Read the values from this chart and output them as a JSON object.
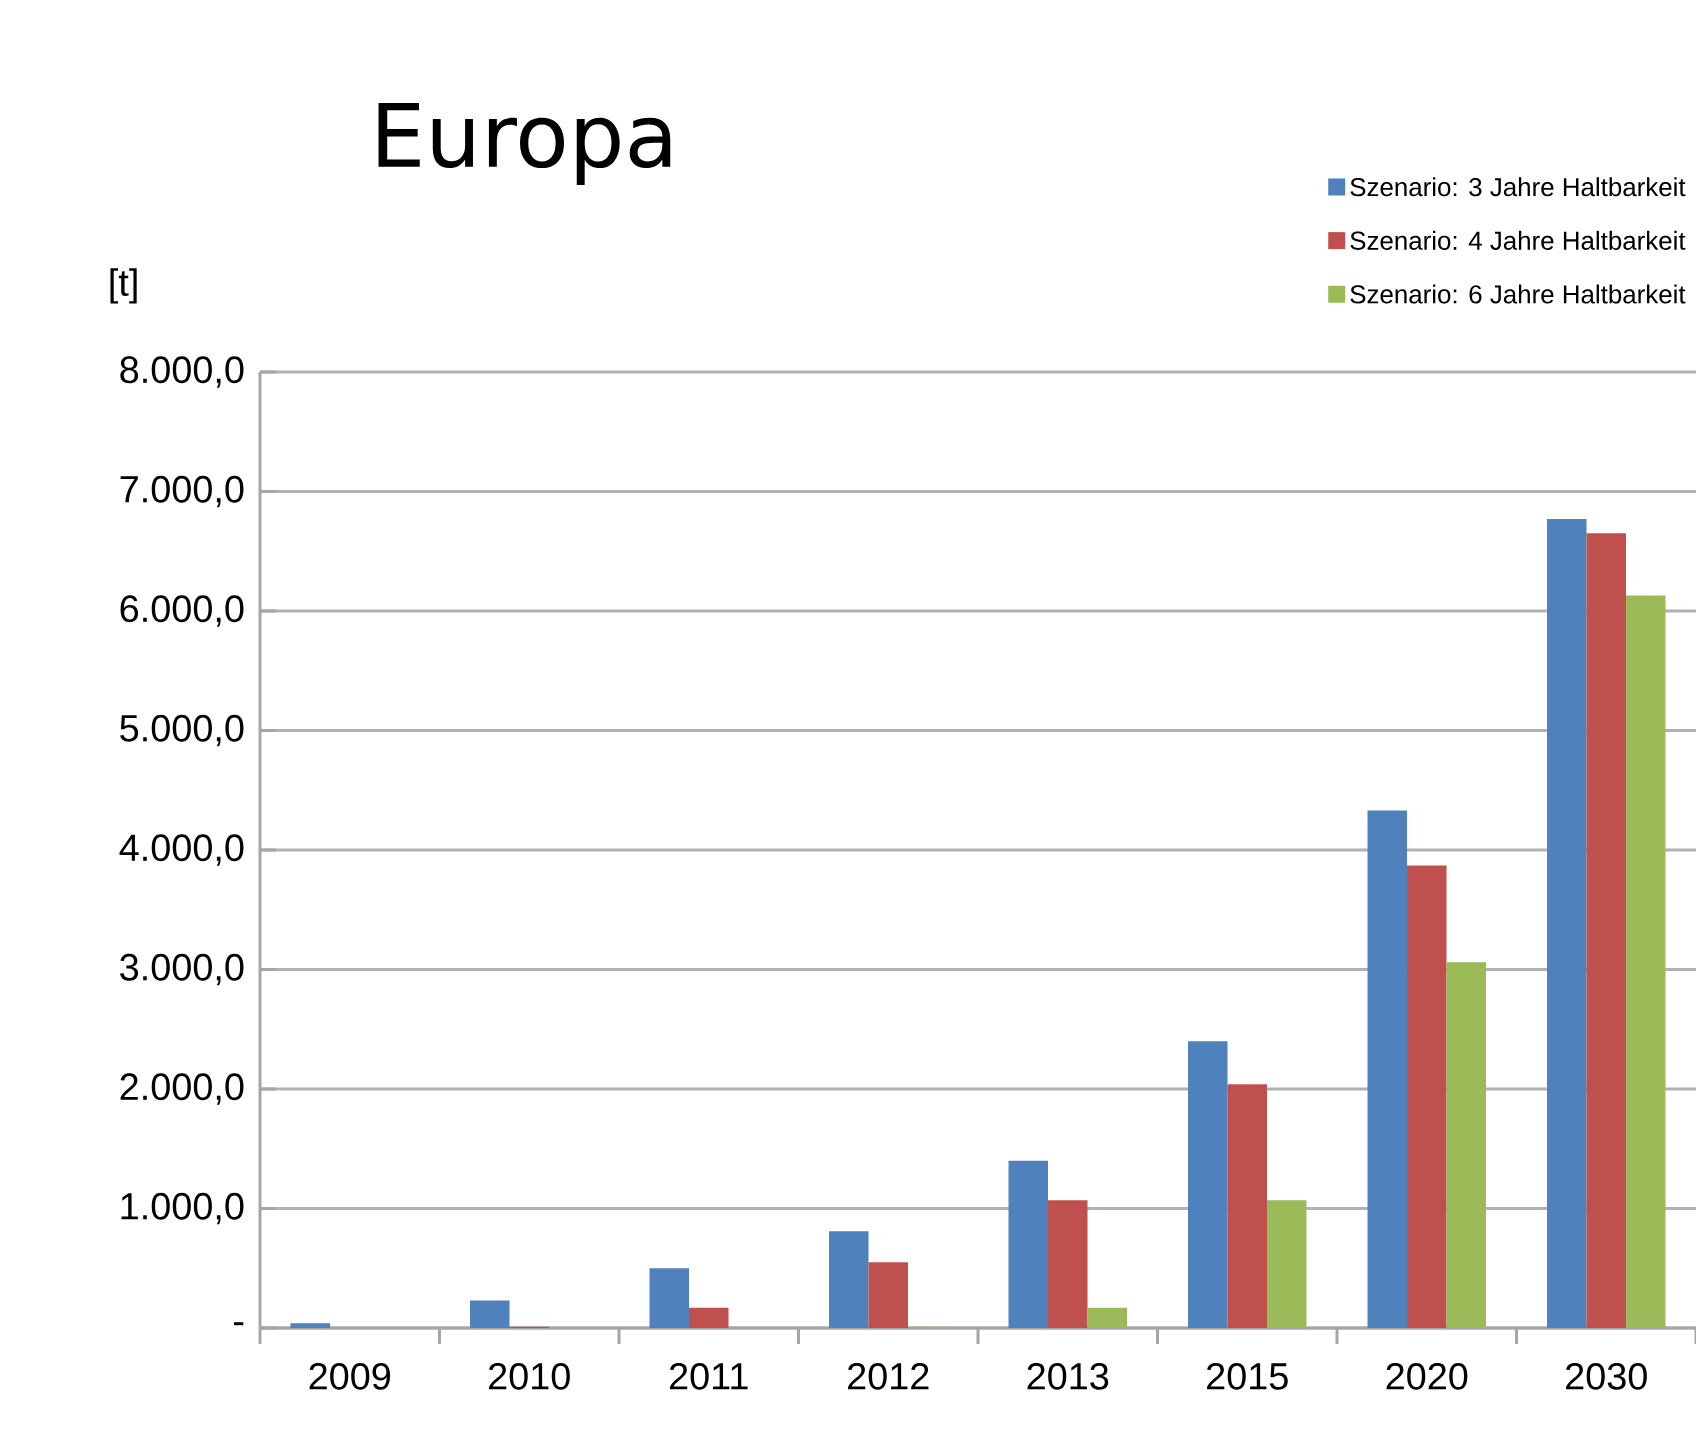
{
  "chart_data": {
    "type": "bar",
    "title": "Europa",
    "ylabel": "[t]",
    "categories": [
      "2009",
      "2010",
      "2011",
      "2012",
      "2013",
      "2015",
      "2020",
      "2030"
    ],
    "series": [
      {
        "name": "Szenario: 3 Jahre Haltbarkeit",
        "color": "#4f81bd",
        "values": [
          40,
          230,
          500,
          810,
          1400,
          2400,
          4330,
          6770
        ]
      },
      {
        "name": "Szenario: 4 Jahre Haltbarkeit",
        "color": "#c0504d",
        "values": [
          0,
          10,
          170,
          550,
          1070,
          2040,
          3870,
          6650
        ]
      },
      {
        "name": "Szenario: 6 Jahre Haltbarkeit",
        "color": "#9bbb59",
        "values": [
          0,
          0,
          0,
          10,
          170,
          1070,
          3060,
          6130
        ]
      }
    ],
    "ylim": [
      0,
      8000
    ],
    "yticks": [
      {
        "value": 0,
        "label": "-"
      },
      {
        "value": 1000,
        "label": "1.000,0"
      },
      {
        "value": 2000,
        "label": "2.000,0"
      },
      {
        "value": 3000,
        "label": "3.000,0"
      },
      {
        "value": 4000,
        "label": "4.000,0"
      },
      {
        "value": 5000,
        "label": "5.000,0"
      },
      {
        "value": 6000,
        "label": "6.000,0"
      },
      {
        "value": 7000,
        "label": "7.000,0"
      },
      {
        "value": 8000,
        "label": "8.000,0"
      }
    ],
    "grid": "y",
    "legend": "top right"
  }
}
